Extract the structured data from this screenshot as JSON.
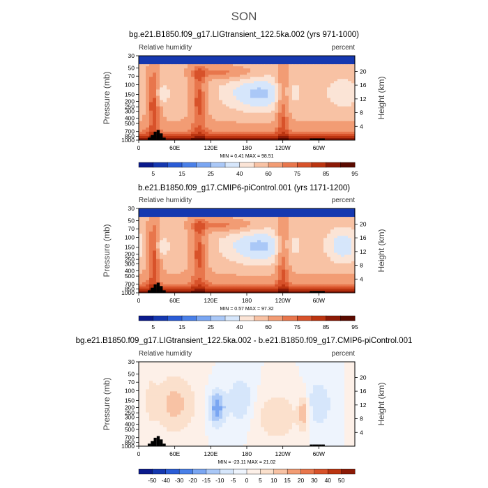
{
  "season": "SON",
  "panels": [
    {
      "title": "bg.e21.B1850.f09_g17.LIGtransient_122.5ka.002 (yrs 971-1000)",
      "left_label": "Relative humidity",
      "right_label": "percent",
      "min_max": "MIN =    0.41   MAX =   98.51",
      "colorbar_labels": [
        "5",
        "15",
        "25",
        "40",
        "60",
        "75",
        "85",
        "95"
      ]
    },
    {
      "title": "b.e21.B1850.f09_g17.CMIP6-piControl.001 (yrs 1171-1200)",
      "left_label": "Relative humidity",
      "right_label": "percent",
      "min_max": "MIN =    0.57   MAX =   97.32",
      "colorbar_labels": [
        "5",
        "15",
        "25",
        "40",
        "60",
        "75",
        "85",
        "95"
      ]
    },
    {
      "title": "bg.e21.B1850.f09_g17.LIGtransient_122.5ka.002 - b.e21.B1850.f09_g17.CMIP6-piControl.001",
      "left_label": "Relative humidity",
      "right_label": "percent",
      "min_max": "MIN =  -23.11   MAX =   21.02",
      "colorbar_labels": [
        "-50",
        "-40",
        "-30",
        "-20",
        "-15",
        "-10",
        "-5",
        "0",
        "5",
        "10",
        "15",
        "20",
        "30",
        "40",
        "50"
      ]
    }
  ],
  "axes": {
    "ylabel": "Pressure (mb)",
    "y2label": "Height (km)",
    "xticks": [
      "0",
      "60E",
      "120E",
      "180",
      "120W",
      "60W"
    ],
    "yticks": [
      "1000",
      "850",
      "700",
      "500",
      "400",
      "300",
      "250",
      "200",
      "150",
      "100",
      "70",
      "50",
      "30"
    ],
    "y2ticks": [
      "4",
      "8",
      "12",
      "16",
      "20"
    ]
  },
  "colors": {
    "abs": [
      "#0a1a8c",
      "#1538b0",
      "#2a5cd6",
      "#4a80e8",
      "#7aa6f2",
      "#aac8f7",
      "#d6e6fb",
      "#fbe4d6",
      "#f8c2a4",
      "#f29c74",
      "#e8764c",
      "#d8522a",
      "#bb3410",
      "#8c1a06",
      "#5a0a00"
    ],
    "diff": [
      "#0a1a8c",
      "#1538b0",
      "#2a5cd6",
      "#4a80e8",
      "#7aa6f2",
      "#aac8f7",
      "#d6e6fb",
      "#eef4fd",
      "#fdf0e8",
      "#fbe0cc",
      "#f8c2a4",
      "#f29c74",
      "#e8764c",
      "#d8522a",
      "#bb3410",
      "#8c1a06"
    ]
  },
  "chart_data": [
    {
      "type": "heatmap",
      "title": "bg.e21.B1850.f09_g17.LIGtransient_122.5ka.002 (yrs 971-1000)",
      "variable": "Relative humidity",
      "units": "percent",
      "x_range_lon": [
        0,
        360
      ],
      "ylabel": "Pressure (mb)",
      "min": 0.41,
      "max": 98.51,
      "contour_levels": [
        5,
        10,
        15,
        20,
        25,
        30,
        40,
        50,
        60,
        70,
        75,
        80,
        85,
        90,
        95
      ]
    },
    {
      "type": "heatmap",
      "title": "b.e21.B1850.f09_g17.CMIP6-piControl.001 (yrs 1171-1200)",
      "variable": "Relative humidity",
      "units": "percent",
      "x_range_lon": [
        0,
        360
      ],
      "ylabel": "Pressure (mb)",
      "min": 0.57,
      "max": 97.32,
      "contour_levels": [
        5,
        10,
        15,
        20,
        25,
        30,
        40,
        50,
        60,
        70,
        75,
        80,
        85,
        90,
        95
      ]
    },
    {
      "type": "heatmap",
      "title": "bg.e21.B1850.f09_g17.LIGtransient_122.5ka.002 - b.e21.B1850.f09_g17.CMIP6-piControl.001",
      "variable": "Relative humidity",
      "units": "percent",
      "x_range_lon": [
        0,
        360
      ],
      "ylabel": "Pressure (mb)",
      "min": -23.11,
      "max": 21.02,
      "contour_levels": [
        -50,
        -40,
        -30,
        -20,
        -15,
        -10,
        -5,
        0,
        5,
        10,
        15,
        20,
        30,
        40,
        50
      ]
    }
  ]
}
